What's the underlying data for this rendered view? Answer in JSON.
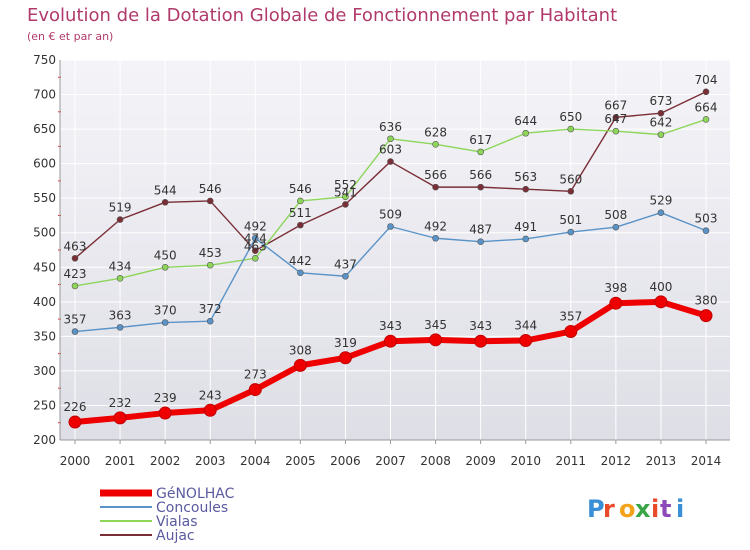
{
  "chart_data": {
    "type": "line",
    "title": "Evolution de la Dotation Globale de Fonctionnement par Habitant",
    "subtitle": "(en € et par an)",
    "xlabel": "",
    "ylabel": "",
    "x": [
      "2000",
      "2001",
      "2002",
      "2003",
      "2004",
      "2005",
      "2006",
      "2007",
      "2008",
      "2009",
      "2010",
      "2011",
      "2012",
      "2013",
      "2014"
    ],
    "ylim": [
      200,
      750
    ],
    "yticks": [
      200,
      250,
      300,
      350,
      400,
      450,
      500,
      550,
      600,
      650,
      700,
      750
    ],
    "grid": true,
    "legend_position": "bottom-left",
    "series": [
      {
        "name": "GéNOLHAC",
        "color": "#ee0000",
        "values": [
          226,
          232,
          239,
          243,
          273,
          308,
          319,
          343,
          345,
          343,
          344,
          357,
          398,
          400,
          380
        ],
        "labels": [
          "226",
          "232",
          "239",
          "243",
          "273",
          "308",
          "319",
          "343",
          "345",
          "343",
          "344",
          "357",
          "398",
          "400",
          "380"
        ]
      },
      {
        "name": "Concoules",
        "color": "#5a93c8",
        "values": [
          357,
          363,
          370,
          372,
          492,
          442,
          437,
          509,
          492,
          487,
          491,
          501,
          508,
          529,
          503
        ],
        "labels": [
          "357",
          "363",
          "370",
          "372",
          "492",
          "442",
          "437",
          "509",
          "492",
          "487",
          "491",
          "501",
          "508",
          "529",
          "503"
        ]
      },
      {
        "name": "Vialas",
        "color": "#8ed65a",
        "values": [
          423,
          434,
          450,
          453,
          463,
          546,
          552,
          636,
          628,
          617,
          644,
          650,
          647,
          642,
          664
        ],
        "labels": [
          "423",
          "434",
          "450",
          "453",
          "463",
          "546",
          "552",
          "636",
          "628",
          "617",
          "644",
          "650",
          "647",
          "642",
          "664"
        ]
      },
      {
        "name": "Aujac",
        "color": "#7a2e36",
        "values": [
          463,
          519,
          544,
          546,
          474,
          511,
          541,
          603,
          566,
          566,
          563,
          560,
          667,
          673,
          704
        ],
        "labels": [
          "463",
          "519",
          "544",
          "546",
          "474",
          "511",
          "541",
          "603",
          "566",
          "566",
          "563",
          "560",
          "667",
          "673",
          "704"
        ]
      }
    ]
  },
  "logo": {
    "text": "Proxiti"
  }
}
